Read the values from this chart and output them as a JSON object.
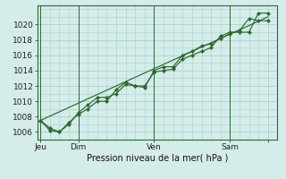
{
  "bg_color": "#d4ecea",
  "grid_color": "#b0d0cc",
  "line_color": "#2d6a2d",
  "marker_color": "#2d6a2d",
  "xlabel": "Pression niveau de la mer( hPa )",
  "ylim": [
    1005.0,
    1022.5
  ],
  "yticks": [
    1006,
    1008,
    1010,
    1012,
    1014,
    1016,
    1018,
    1020
  ],
  "xlim": [
    -2,
    150
  ],
  "day_ticks": [
    0,
    24,
    72,
    120,
    144
  ],
  "day_labels": [
    "Jeu",
    "Dim",
    "Ven",
    "Sam",
    ""
  ],
  "series1_x": [
    0,
    6,
    12,
    18,
    24,
    30,
    36,
    42,
    48,
    54,
    60,
    66,
    72,
    78,
    84,
    90,
    96,
    102,
    108,
    114,
    120,
    126,
    132,
    138,
    144
  ],
  "series1_y": [
    1007.5,
    1006.5,
    1006.0,
    1007.0,
    1008.5,
    1009.5,
    1010.5,
    1010.5,
    1011.0,
    1012.2,
    1012.0,
    1012.0,
    1013.8,
    1014.0,
    1014.2,
    1015.5,
    1016.0,
    1016.5,
    1017.0,
    1018.5,
    1019.0,
    1019.0,
    1019.0,
    1021.5,
    1021.5
  ],
  "series2_x": [
    0,
    6,
    12,
    18,
    24,
    30,
    36,
    42,
    48,
    54,
    60,
    66,
    72,
    78,
    84,
    90,
    96,
    102,
    108,
    114,
    120,
    126,
    132,
    138,
    144
  ],
  "series2_y": [
    1007.5,
    1006.2,
    1006.0,
    1007.2,
    1008.3,
    1009.0,
    1010.0,
    1010.0,
    1011.5,
    1012.5,
    1012.0,
    1011.8,
    1014.0,
    1014.5,
    1014.5,
    1016.0,
    1016.5,
    1017.2,
    1017.5,
    1018.2,
    1018.8,
    1019.2,
    1020.8,
    1020.5,
    1020.5
  ],
  "series3_x": [
    0,
    144
  ],
  "series3_y": [
    1007.5,
    1021.0
  ]
}
